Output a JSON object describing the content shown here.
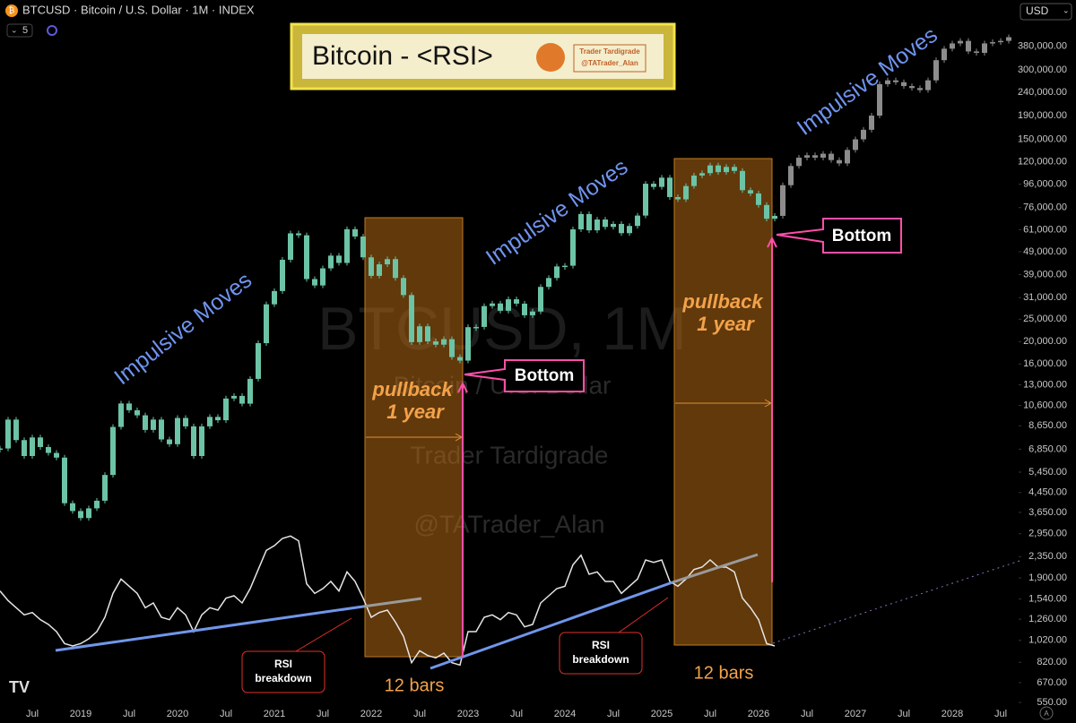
{
  "header": {
    "logo": "₿",
    "symbol": "BTCUSD · Bitcoin / U.S. Dollar · 1M · INDEX",
    "interval_count": 5,
    "currency": "USD"
  },
  "title_box": {
    "title": "Bitcoin - <RSI>",
    "logo_lines": [
      "Trader Tardigrade",
      "@TATrader_Alan"
    ]
  },
  "watermark": {
    "symbol": "BTCUSD, 1M",
    "description": "Bitcoin / U.S. Dollar",
    "author": "Trader Tardigrade",
    "handle": "@TATrader_Alan"
  },
  "annotations": {
    "impulsive": [
      "Impulsive Moves",
      "Impulsive Moves",
      "Impulsive Moves"
    ],
    "bottom": [
      "Bottom",
      "Bottom"
    ],
    "pullback": [
      [
        "pullback",
        "1 year"
      ],
      [
        "pullback",
        "1 year"
      ]
    ],
    "bars": [
      "12 bars",
      "12 bars"
    ],
    "rsi_breakdown": [
      [
        "RSI",
        "breakdown"
      ],
      [
        "RSI",
        "breakdown"
      ]
    ]
  },
  "chart_data": {
    "type": "candlestick",
    "log": true,
    "ylim": [
      448,
      601000
    ],
    "y2lim": [
      35,
      95
    ],
    "yticks": [
      {
        "value": 380000,
        "label": "380,000.00"
      },
      {
        "value": 300000,
        "label": "300,000.00"
      },
      {
        "value": 240000,
        "label": "240,000.00"
      },
      {
        "value": 190000,
        "label": "190,000.00"
      },
      {
        "value": 150000,
        "label": "150,000.00"
      },
      {
        "value": 120000,
        "label": "120,000.00"
      },
      {
        "value": 96000,
        "label": "96,000.00"
      },
      {
        "value": 76000,
        "label": "76,000.00"
      },
      {
        "value": 61000,
        "label": "61,000.00"
      },
      {
        "value": 49000,
        "label": "49,000.00"
      },
      {
        "value": 39000,
        "label": "39,000.00"
      },
      {
        "value": 31000,
        "label": "31,000.00"
      },
      {
        "value": 25000,
        "label": "25,000.00"
      },
      {
        "value": 20000,
        "label": "20,000.00"
      },
      {
        "value": 16000,
        "label": "16,000.00"
      },
      {
        "value": 13000,
        "label": "13,000.00"
      },
      {
        "value": 10600,
        "label": "10,600.00"
      },
      {
        "value": 8650,
        "label": "8,650.00"
      },
      {
        "value": 6850,
        "label": "6,850.00"
      },
      {
        "value": 5450,
        "label": "5,450.00"
      },
      {
        "value": 4450,
        "label": "4,450.00"
      },
      {
        "value": 3650,
        "label": "3,650.00"
      },
      {
        "value": 2950,
        "label": "2,950.00"
      },
      {
        "value": 2350,
        "label": "2,350.00"
      },
      {
        "value": 1900,
        "label": "1,900.00"
      },
      {
        "value": 1540,
        "label": "1,540.00"
      },
      {
        "value": 1260,
        "label": "1,260.00"
      },
      {
        "value": 1020,
        "label": "1,020.00"
      },
      {
        "value": 820,
        "label": "820.00"
      },
      {
        "value": 670,
        "label": "670.00"
      },
      {
        "value": 550,
        "label": "550.00"
      }
    ],
    "categories": [
      null,
      null,
      null,
      null,
      "Jul",
      null,
      null,
      null,
      null,
      null,
      "2019",
      null,
      null,
      null,
      null,
      null,
      "Jul",
      null,
      null,
      null,
      null,
      null,
      "2020",
      null,
      null,
      null,
      null,
      null,
      "Jul",
      null,
      null,
      null,
      null,
      null,
      "2021",
      null,
      null,
      null,
      null,
      null,
      "Jul",
      null,
      null,
      null,
      null,
      null,
      "2022",
      null,
      null,
      null,
      null,
      null,
      "Jul",
      null,
      null,
      null,
      null,
      null,
      "2023",
      null,
      null,
      null,
      null,
      null,
      "Jul",
      null,
      null,
      null,
      null,
      null,
      "2024",
      null,
      null,
      null,
      null,
      null,
      "Jul",
      null,
      null,
      null,
      null,
      null,
      "2025",
      null,
      null,
      null,
      null,
      null,
      "Jul",
      null,
      null,
      null,
      null,
      null,
      "2026",
      null,
      null,
      null,
      null,
      null,
      "Jul",
      null,
      null,
      null,
      null,
      null,
      "2027",
      null,
      null,
      null,
      null,
      null,
      "Jul",
      null,
      null,
      null,
      null,
      null,
      "2028",
      null,
      null,
      null,
      null,
      null,
      "Jul",
      null
    ],
    "series": [
      {
        "color": "#6cc3a5",
        "values": [
          6900,
          9200,
          7500,
          6400,
          7700,
          7000,
          6600,
          6300,
          4000,
          3700,
          3450,
          3800,
          4100,
          5300,
          8550,
          10800,
          10100,
          9600,
          8300,
          9200,
          7550,
          7200,
          9350,
          8600,
          6400,
          8600,
          9450,
          9140,
          11350,
          11650,
          10780,
          13800,
          19700,
          29000,
          33100,
          45200,
          58800,
          57700,
          37300,
          35000,
          41500,
          47100,
          43800,
          61300,
          57000,
          46300,
          38500,
          43200,
          45500,
          37700,
          31800,
          19900,
          23300,
          20050,
          19400,
          20500,
          17150,
          16550,
          23100,
          23150,
          28500,
          29250,
          27200,
          30500,
          29200,
          26000,
          27000,
          34500,
          37700,
          42300,
          42600,
          61200,
          71300,
          60600,
          67500,
          62700,
          64600,
          58900,
          63300,
          70200,
          96400,
          93400,
          102400,
          84400,
          82500,
          94200,
          104600,
          107100,
          115700,
          108200,
          114000,
          109500,
          90400,
          87500,
          78000,
          68000,
          70000,
          null,
          null,
          null,
          null,
          null,
          null,
          null,
          null,
          null,
          null,
          null,
          null,
          null,
          null,
          null,
          null,
          null,
          null,
          null,
          null,
          null,
          null,
          null,
          null,
          null,
          null,
          null,
          null,
          null
        ]
      },
      {
        "color": "#8c8c8c",
        "values": [
          null,
          null,
          null,
          null,
          null,
          null,
          null,
          null,
          null,
          null,
          null,
          null,
          null,
          null,
          null,
          null,
          null,
          null,
          null,
          null,
          null,
          null,
          null,
          null,
          null,
          null,
          null,
          null,
          null,
          null,
          null,
          null,
          null,
          null,
          null,
          null,
          null,
          null,
          null,
          null,
          null,
          null,
          null,
          null,
          null,
          null,
          null,
          null,
          null,
          null,
          null,
          null,
          null,
          null,
          null,
          null,
          null,
          null,
          null,
          null,
          null,
          null,
          null,
          null,
          null,
          null,
          null,
          null,
          null,
          null,
          null,
          null,
          null,
          null,
          null,
          null,
          null,
          null,
          null,
          null,
          null,
          null,
          null,
          null,
          null,
          null,
          null,
          null,
          null,
          null,
          null,
          null,
          null,
          null,
          null,
          null,
          null,
          95000,
          115000,
          125000,
          128000,
          125000,
          130000,
          122000,
          118000,
          135000,
          150000,
          165000,
          190000,
          260000,
          270000,
          265000,
          255000,
          250000,
          245000,
          270000,
          330000,
          370000,
          390000,
          400000,
          360000,
          355000,
          390000,
          395000,
          400000,
          415000
        ]
      },
      {
        "color": "#e6e6e6",
        "type": "line",
        "axis": "y2",
        "values": [
          67,
          63,
          60,
          57,
          58,
          55,
          53,
          50,
          45,
          44,
          45,
          47,
          50,
          56,
          66,
          72,
          69,
          66,
          60,
          62,
          56,
          55,
          60,
          57,
          50,
          57,
          60,
          59,
          64,
          65,
          62,
          68,
          76,
          84,
          86,
          89,
          90,
          88,
          70,
          66,
          68,
          71,
          67,
          75,
          71,
          64,
          56,
          58,
          59,
          54,
          48,
          37,
          42,
          40,
          39,
          41,
          37,
          36,
          50,
          50,
          56,
          57,
          55,
          58,
          57,
          52,
          53,
          62,
          65,
          68,
          69,
          78,
          82,
          74,
          75,
          71,
          71,
          66,
          69,
          72,
          80,
          79,
          80,
          71,
          69,
          72,
          76,
          77,
          80,
          77,
          77,
          75,
          64,
          60,
          55,
          45,
          44,
          null,
          null,
          null,
          null,
          null,
          null,
          null,
          null,
          null,
          null,
          null,
          null,
          null,
          null,
          null,
          null,
          null,
          null,
          null,
          null,
          null,
          null,
          null,
          null,
          null,
          null,
          null,
          null,
          null
        ]
      }
    ]
  }
}
